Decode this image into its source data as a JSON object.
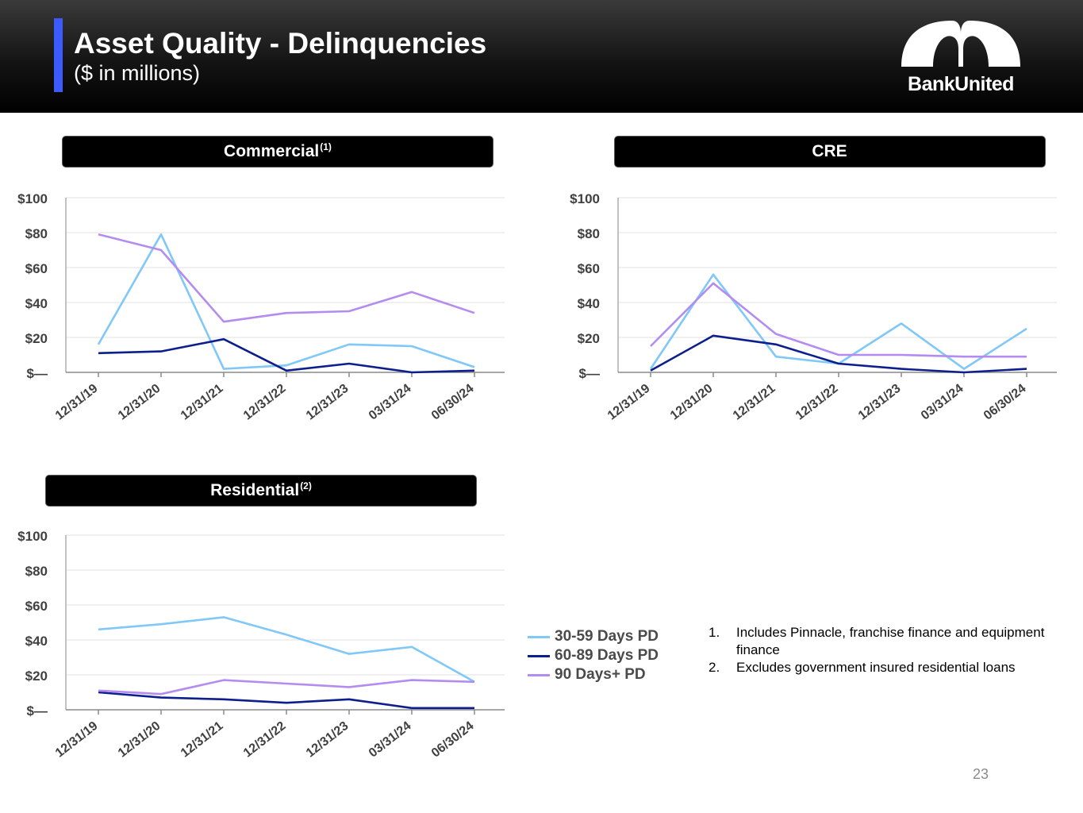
{
  "slide": {
    "title": "Asset Quality - Delinquencies",
    "subtitle": "($ in millions)",
    "page_number": "23",
    "brand": {
      "name": "BankUnited",
      "accent": "#3d5afe"
    }
  },
  "panels": {
    "commercial": {
      "label": "Commercial",
      "sup": "(1)"
    },
    "cre": {
      "label": "CRE",
      "sup": ""
    },
    "residential": {
      "label": "Residential",
      "sup": "(2)"
    }
  },
  "legend": [
    {
      "label": "30-59 Days PD",
      "color": "#7fc8f8"
    },
    {
      "label": "60-89 Days PD",
      "color": "#0d1f8c"
    },
    {
      "label": "90 Days+ PD",
      "color": "#b48cf0"
    }
  ],
  "footnotes": [
    {
      "num": "1.",
      "text": "Includes Pinnacle, franchise finance and equipment finance"
    },
    {
      "num": "2.",
      "text": "Excludes government insured residential loans"
    }
  ],
  "chart_data": [
    {
      "type": "line",
      "title": "Commercial(1)",
      "categories": [
        "12/31/19",
        "12/31/20",
        "12/31/21",
        "12/31/22",
        "12/31/23",
        "03/31/24",
        "06/30/24"
      ],
      "yticks": [
        "$—",
        "$20",
        "$40",
        "$60",
        "$80",
        "$100"
      ],
      "ylim": [
        0,
        100
      ],
      "grid": true,
      "series": [
        {
          "name": "30-59 Days PD",
          "values": [
            16,
            79,
            2,
            4,
            16,
            15,
            3
          ]
        },
        {
          "name": "60-89 Days PD",
          "values": [
            11,
            12,
            19,
            1,
            5,
            0,
            1
          ]
        },
        {
          "name": "90 Days+ PD",
          "values": [
            79,
            70,
            29,
            34,
            35,
            46,
            34
          ]
        }
      ]
    },
    {
      "type": "line",
      "title": "CRE",
      "categories": [
        "12/31/19",
        "12/31/20",
        "12/31/21",
        "12/31/22",
        "12/31/23",
        "03/31/24",
        "06/30/24"
      ],
      "yticks": [
        "$—",
        "$20",
        "$40",
        "$60",
        "$80",
        "$100"
      ],
      "ylim": [
        0,
        100
      ],
      "grid": true,
      "series": [
        {
          "name": "30-59 Days PD",
          "values": [
            2,
            56,
            9,
            5,
            28,
            2,
            25
          ]
        },
        {
          "name": "60-89 Days PD",
          "values": [
            1,
            21,
            16,
            5,
            2,
            0,
            2
          ]
        },
        {
          "name": "90 Days+ PD",
          "values": [
            15,
            51,
            22,
            10,
            10,
            9,
            9
          ]
        }
      ]
    },
    {
      "type": "line",
      "title": "Residential(2)",
      "categories": [
        "12/31/19",
        "12/31/20",
        "12/31/21",
        "12/31/22",
        "12/31/23",
        "03/31/24",
        "06/30/24"
      ],
      "yticks": [
        "$—",
        "$20",
        "$40",
        "$60",
        "$80",
        "$100"
      ],
      "ylim": [
        0,
        100
      ],
      "grid": true,
      "series": [
        {
          "name": "30-59 Days PD",
          "values": [
            46,
            49,
            53,
            43,
            32,
            36,
            16
          ]
        },
        {
          "name": "60-89 Days PD",
          "values": [
            10,
            7,
            6,
            4,
            6,
            1,
            1
          ]
        },
        {
          "name": "90 Days+ PD",
          "values": [
            11,
            9,
            17,
            15,
            13,
            17,
            16
          ]
        }
      ]
    }
  ]
}
